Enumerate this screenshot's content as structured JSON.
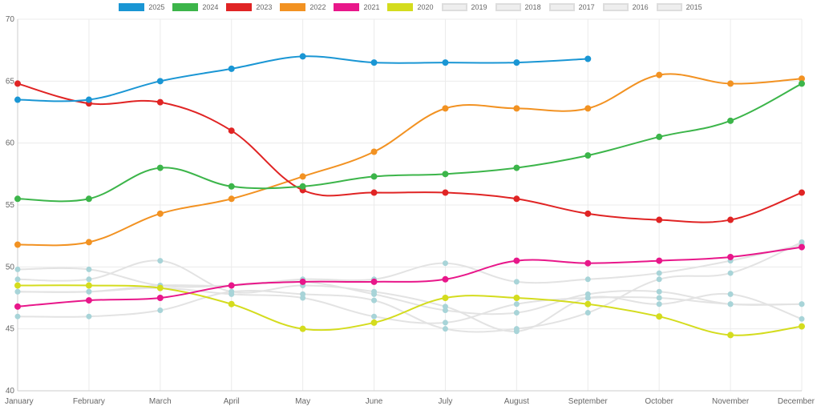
{
  "chart_data": {
    "type": "line",
    "categories": [
      "January",
      "February",
      "March",
      "April",
      "May",
      "June",
      "July",
      "August",
      "September",
      "October",
      "November",
      "December"
    ],
    "ylim": [
      40,
      70
    ],
    "yticks": [
      40,
      45,
      50,
      55,
      60,
      65,
      70
    ],
    "grid": true,
    "legend_position": "top",
    "series": [
      {
        "name": "2025",
        "color": "#1a96d4",
        "active": true,
        "values": [
          63.5,
          63.5,
          65.0,
          66.0,
          67.0,
          66.5,
          66.5,
          66.5,
          66.8,
          null,
          null,
          null
        ]
      },
      {
        "name": "2024",
        "color": "#3cb54a",
        "active": true,
        "values": [
          55.5,
          55.5,
          58.0,
          56.5,
          56.5,
          57.3,
          57.5,
          58.0,
          59.0,
          60.5,
          61.8,
          64.8
        ]
      },
      {
        "name": "2023",
        "color": "#e02424",
        "active": true,
        "values": [
          64.8,
          63.2,
          63.3,
          61.0,
          56.2,
          56.0,
          56.0,
          55.5,
          54.3,
          53.8,
          53.8,
          56.0
        ]
      },
      {
        "name": "2022",
        "color": "#f29222",
        "active": true,
        "values": [
          51.8,
          52.0,
          54.3,
          55.5,
          57.3,
          59.3,
          62.8,
          62.8,
          62.8,
          65.5,
          64.8,
          65.2
        ]
      },
      {
        "name": "2021",
        "color": "#e8178a",
        "active": true,
        "values": [
          46.8,
          47.3,
          47.5,
          48.5,
          48.8,
          48.8,
          49.0,
          50.5,
          50.3,
          50.5,
          50.8,
          51.6
        ]
      },
      {
        "name": "2020",
        "color": "#d4dc1e",
        "active": true,
        "values": [
          48.5,
          48.5,
          48.3,
          47.0,
          45.0,
          45.5,
          47.5,
          47.5,
          47.0,
          46.0,
          44.5,
          45.2
        ]
      },
      {
        "name": "2019",
        "color": "#dddddd",
        "active": false,
        "values": [
          49.8,
          49.8,
          48.5,
          48.5,
          48.8,
          47.8,
          46.5,
          46.3,
          47.8,
          48.0,
          47.0,
          47.0
        ]
      },
      {
        "name": "2018",
        "color": "#dddddd",
        "active": false,
        "values": [
          48.0,
          48.0,
          48.3,
          47.8,
          47.5,
          46.0,
          45.5,
          47.0,
          47.5,
          47.5,
          47.0,
          47.0
        ]
      },
      {
        "name": "2017",
        "color": "#dddddd",
        "active": false,
        "values": [
          46.0,
          46.0,
          46.5,
          48.0,
          47.8,
          47.3,
          45.0,
          45.0,
          46.3,
          49.0,
          49.5,
          52.0
        ]
      },
      {
        "name": "2016",
        "color": "#dddddd",
        "active": false,
        "values": [
          48.0,
          48.0,
          48.5,
          48.5,
          49.0,
          49.0,
          50.3,
          48.8,
          49.0,
          49.5,
          50.5,
          51.8
        ]
      },
      {
        "name": "2015",
        "color": "#dddddd",
        "active": false,
        "values": [
          49.0,
          49.0,
          50.5,
          48.0,
          48.5,
          48.0,
          46.8,
          44.8,
          47.5,
          47.0,
          47.8,
          45.8
        ]
      }
    ]
  }
}
